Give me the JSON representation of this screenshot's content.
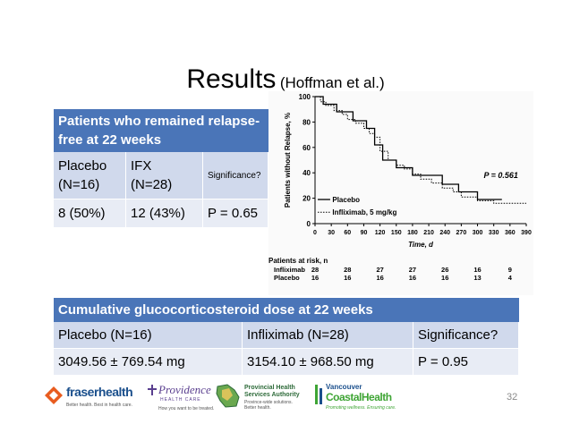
{
  "slide": {
    "title": "Results",
    "subtitle": "(Hoffman et al.)",
    "page_number": "32"
  },
  "table1": {
    "header": "Patients who remained relapse-free at 22 weeks",
    "col1_line1": "Placebo",
    "col1_line2": "(N=16)",
    "col2_line1": "IFX",
    "col2_line2": "(N=28)",
    "col3": "Significance?",
    "row_placebo": "8 (50%)",
    "row_ifx": "12 (43%)",
    "row_sig": "P = 0.65"
  },
  "table2": {
    "header": "Cumulative glucocorticosteroid dose at 22 weeks",
    "h1": "Placebo (N=16)",
    "h2": "Infliximab (N=28)",
    "h3": "Significance?",
    "v1": "3049.56 ± 769.54 mg",
    "v2": "3154.10 ± 968.50 mg",
    "v3": "P = 0.95"
  },
  "chart_data": {
    "type": "line",
    "ylabel": "Patients without Relapse, %",
    "xlabel": "Time, d",
    "xlim": [
      0,
      390
    ],
    "ylim": [
      0,
      100
    ],
    "xticks": [
      0,
      30,
      60,
      90,
      120,
      150,
      180,
      210,
      240,
      270,
      300,
      330,
      360,
      390
    ],
    "yticks": [
      0,
      20,
      40,
      60,
      80,
      100
    ],
    "annotation": "P = 0.561",
    "series": [
      {
        "name": "Placebo",
        "style": "solid",
        "points": [
          [
            0,
            100
          ],
          [
            15,
            100
          ],
          [
            15,
            94
          ],
          [
            40,
            94
          ],
          [
            40,
            88
          ],
          [
            70,
            88
          ],
          [
            70,
            81
          ],
          [
            95,
            81
          ],
          [
            95,
            75
          ],
          [
            110,
            75
          ],
          [
            110,
            62
          ],
          [
            125,
            62
          ],
          [
            125,
            50
          ],
          [
            150,
            50
          ],
          [
            150,
            44
          ],
          [
            180,
            44
          ],
          [
            180,
            38
          ],
          [
            235,
            38
          ],
          [
            235,
            31
          ],
          [
            265,
            31
          ],
          [
            265,
            25
          ],
          [
            300,
            25
          ],
          [
            300,
            19
          ],
          [
            345,
            19
          ],
          [
            345,
            19
          ]
        ]
      },
      {
        "name": "Infliximab, 5 mg/kg",
        "style": "dotted",
        "points": [
          [
            0,
            100
          ],
          [
            10,
            100
          ],
          [
            10,
            96
          ],
          [
            20,
            96
          ],
          [
            20,
            93
          ],
          [
            35,
            93
          ],
          [
            35,
            89
          ],
          [
            50,
            89
          ],
          [
            50,
            86
          ],
          [
            60,
            86
          ],
          [
            60,
            82
          ],
          [
            75,
            82
          ],
          [
            75,
            79
          ],
          [
            90,
            79
          ],
          [
            90,
            75
          ],
          [
            100,
            75
          ],
          [
            100,
            71
          ],
          [
            110,
            71
          ],
          [
            110,
            68
          ],
          [
            120,
            68
          ],
          [
            120,
            57
          ],
          [
            135,
            57
          ],
          [
            135,
            50
          ],
          [
            150,
            50
          ],
          [
            150,
            46
          ],
          [
            165,
            46
          ],
          [
            165,
            43
          ],
          [
            180,
            43
          ],
          [
            180,
            39
          ],
          [
            195,
            39
          ],
          [
            195,
            35
          ],
          [
            215,
            35
          ],
          [
            215,
            32
          ],
          [
            235,
            32
          ],
          [
            235,
            28
          ],
          [
            255,
            28
          ],
          [
            255,
            25
          ],
          [
            270,
            25
          ],
          [
            270,
            21
          ],
          [
            300,
            21
          ],
          [
            300,
            18
          ],
          [
            330,
            18
          ],
          [
            330,
            16
          ],
          [
            390,
            16
          ]
        ]
      }
    ],
    "risk_table": {
      "title": "Patients at risk, n",
      "rows": [
        {
          "name": "Infliximab",
          "values": [
            "28",
            "28",
            "27",
            "27",
            "26",
            "16",
            "9"
          ]
        },
        {
          "name": "Placebo",
          "values": [
            "16",
            "16",
            "16",
            "16",
            "16",
            "13",
            "4"
          ]
        }
      ]
    }
  },
  "footer": {
    "fraser_name": "fraserhealth",
    "fraser_tag": "Better health. Best in health care.",
    "providence_name": "Providence",
    "providence_sub": "HEALTH CARE",
    "providence_tag": "How you want to be treated.",
    "phsa_name1": "Provincial Health",
    "phsa_name2": "Services Authority",
    "phsa_tag1": "Province-wide solutions.",
    "phsa_tag2": "Better health.",
    "vch_name1": "Vancouver",
    "vch_name2": "CoastalHealth",
    "vch_tag": "Promoting wellness. Ensuring care.",
    "colors": {
      "fraser": "#1a4f8c",
      "providence": "#5a3f8f",
      "phsa": "#2e6b3a",
      "vch": "#3fa535"
    }
  }
}
